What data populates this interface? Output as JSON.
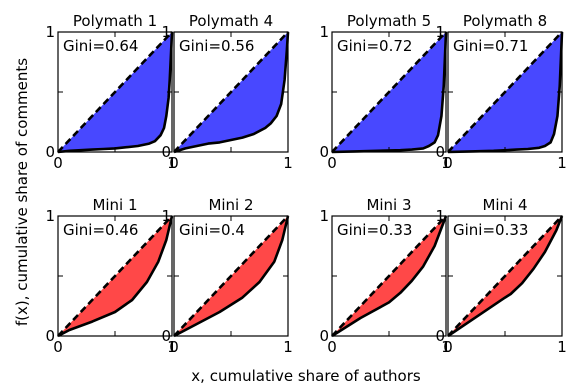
{
  "figure": {
    "xlabel": "x, cumulative share of authors",
    "ylabel": "f(x), cumulative share of comments"
  },
  "chart_data": [
    {
      "type": "area",
      "title": "Polymath 1",
      "annotation": "Gini=0.64",
      "color": "#4848ff",
      "xlim": [
        0,
        1
      ],
      "ylim": [
        0,
        1
      ],
      "xticks": [
        "0",
        "1"
      ],
      "yticks": [
        "0",
        "1"
      ],
      "x": [
        0,
        0.1,
        0.2,
        0.3,
        0.4,
        0.5,
        0.6,
        0.7,
        0.8,
        0.85,
        0.9,
        0.93,
        0.95,
        0.97,
        0.98,
        0.99,
        1.0
      ],
      "y": [
        0,
        0.01,
        0.015,
        0.02,
        0.025,
        0.03,
        0.04,
        0.05,
        0.07,
        0.09,
        0.14,
        0.2,
        0.3,
        0.45,
        0.6,
        0.8,
        1.0
      ]
    },
    {
      "type": "area",
      "title": "Polymath 4",
      "annotation": "Gini=0.56",
      "color": "#4848ff",
      "xlim": [
        0,
        1
      ],
      "ylim": [
        0,
        1
      ],
      "xticks": [
        "0",
        "1"
      ],
      "yticks": [
        "0",
        "1"
      ],
      "x": [
        0,
        0.1,
        0.2,
        0.3,
        0.4,
        0.5,
        0.6,
        0.7,
        0.8,
        0.85,
        0.9,
        0.94,
        0.97,
        0.99,
        1.0
      ],
      "y": [
        0,
        0.03,
        0.05,
        0.07,
        0.08,
        0.1,
        0.12,
        0.15,
        0.2,
        0.24,
        0.3,
        0.4,
        0.6,
        0.85,
        1.0
      ]
    },
    {
      "type": "area",
      "title": "Polymath 5",
      "annotation": "Gini=0.72",
      "color": "#4848ff",
      "xlim": [
        0,
        1
      ],
      "ylim": [
        0,
        1
      ],
      "xticks": [
        "0",
        "1"
      ],
      "yticks": [
        "0",
        "1"
      ],
      "x": [
        0,
        0.2,
        0.4,
        0.6,
        0.7,
        0.8,
        0.85,
        0.9,
        0.93,
        0.96,
        0.98,
        1.0
      ],
      "y": [
        0,
        0.005,
        0.01,
        0.015,
        0.02,
        0.03,
        0.05,
        0.08,
        0.14,
        0.3,
        0.55,
        1.0
      ]
    },
    {
      "type": "area",
      "title": "Polymath 8",
      "annotation": "Gini=0.71",
      "color": "#4848ff",
      "xlim": [
        0,
        1
      ],
      "ylim": [
        0,
        1
      ],
      "xticks": [
        "0",
        "1"
      ],
      "yticks": [
        "0",
        "1"
      ],
      "x": [
        0,
        0.2,
        0.4,
        0.6,
        0.7,
        0.8,
        0.85,
        0.9,
        0.93,
        0.96,
        0.98,
        1.0
      ],
      "y": [
        0,
        0.005,
        0.01,
        0.02,
        0.025,
        0.035,
        0.05,
        0.08,
        0.15,
        0.3,
        0.55,
        1.0
      ]
    },
    {
      "type": "area",
      "title": "Mini 1",
      "annotation": "Gini=0.46",
      "color": "#ff4848",
      "xlim": [
        0,
        1
      ],
      "ylim": [
        0,
        1
      ],
      "xticks": [
        "0",
        "1"
      ],
      "yticks": [
        "0",
        "1"
      ],
      "x": [
        0,
        0.1,
        0.3,
        0.5,
        0.65,
        0.78,
        0.88,
        0.95,
        1.0
      ],
      "y": [
        0,
        0.05,
        0.12,
        0.2,
        0.3,
        0.45,
        0.62,
        0.8,
        1.0
      ]
    },
    {
      "type": "area",
      "title": "Mini 2",
      "annotation": "Gini=0.4",
      "color": "#ff4848",
      "xlim": [
        0,
        1
      ],
      "ylim": [
        0,
        1
      ],
      "xticks": [
        "0",
        "1"
      ],
      "yticks": [
        "0",
        "1"
      ],
      "x": [
        0,
        0.2,
        0.4,
        0.6,
        0.75,
        0.88,
        0.95,
        1.0
      ],
      "y": [
        0,
        0.1,
        0.2,
        0.32,
        0.45,
        0.62,
        0.8,
        1.0
      ]
    },
    {
      "type": "area",
      "title": "Mini 3",
      "annotation": "Gini=0.33",
      "color": "#ff4848",
      "xlim": [
        0,
        1
      ],
      "ylim": [
        0,
        1
      ],
      "xticks": [
        "0",
        "1"
      ],
      "yticks": [
        "0",
        "1"
      ],
      "x": [
        0,
        0.25,
        0.5,
        0.6,
        0.7,
        0.8,
        0.9,
        1.0
      ],
      "y": [
        0,
        0.15,
        0.28,
        0.36,
        0.46,
        0.58,
        0.75,
        1.0
      ]
    },
    {
      "type": "area",
      "title": "Mini 4",
      "annotation": "Gini=0.33",
      "color": "#ff4848",
      "xlim": [
        0,
        1
      ],
      "ylim": [
        0,
        1
      ],
      "xticks": [
        "0",
        "1"
      ],
      "yticks": [
        "0",
        "1"
      ],
      "x": [
        0,
        0.25,
        0.5,
        0.55,
        0.65,
        0.75,
        0.85,
        0.95,
        1.0
      ],
      "y": [
        0,
        0.16,
        0.32,
        0.35,
        0.44,
        0.56,
        0.7,
        0.88,
        1.0
      ]
    }
  ]
}
